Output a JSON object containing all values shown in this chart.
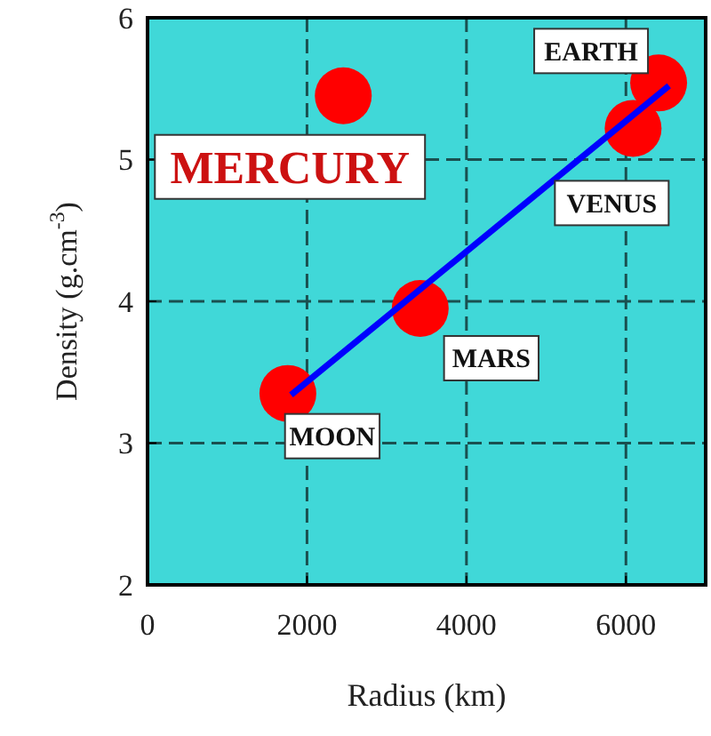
{
  "chart_data": {
    "type": "scatter",
    "xlabel": "Radius (km)",
    "ylabel": "Density (g.cm$^{-3}$)",
    "xlim": [
      0,
      7000
    ],
    "xticks": [
      0,
      2000,
      4000,
      6000
    ],
    "ylim": [
      2,
      6
    ],
    "yticks": [
      2,
      3,
      4,
      5,
      6
    ],
    "grid": true,
    "series": [
      {
        "marker": "circle",
        "color": "#ff0000",
        "x": [
          1760,
          2455,
          3420,
          6090,
          6410
        ],
        "values": [
          3.35,
          5.45,
          3.95,
          5.22,
          5.54
        ]
      },
      {
        "type": "line",
        "color": "#0000ff",
        "x": [
          1800,
          6540
        ],
        "values": [
          3.34,
          5.52
        ],
        "line_style": "solid"
      }
    ],
    "annotations": [
      {
        "text": "MERCURY",
        "x": 2455,
        "y": 5.45
      },
      {
        "text": "EARTH",
        "x": 6410,
        "y": 5.54
      },
      {
        "text": "VENUS",
        "x": 6090,
        "y": 5.22
      },
      {
        "text": "MARS",
        "x": 3420,
        "y": 3.95
      },
      {
        "text": "MOON",
        "x": 1760,
        "y": 3.35
      }
    ]
  }
}
